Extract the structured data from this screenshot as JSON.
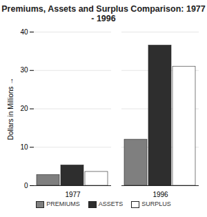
{
  "chart_data": {
    "type": "bar",
    "title": "Premiums, Assets and Surplus Comparison: 1977 - 1996",
    "ylabel": "Dollars in Millions",
    "categories": [
      "1977",
      "1996"
    ],
    "series": [
      {
        "name": "PREMIUMS",
        "color": "#7f7f7f",
        "values": [
          2.8,
          12
        ]
      },
      {
        "name": "ASSETS",
        "color": "#2e2e2e",
        "values": [
          5.3,
          36.5
        ]
      },
      {
        "name": "SURPLUS",
        "color": "#ffffff",
        "values": [
          3.6,
          31
        ]
      }
    ],
    "ylim": [
      0,
      40
    ],
    "yticks": [
      0,
      10,
      20,
      30,
      40
    ],
    "grid": true,
    "legend": "bottom"
  }
}
